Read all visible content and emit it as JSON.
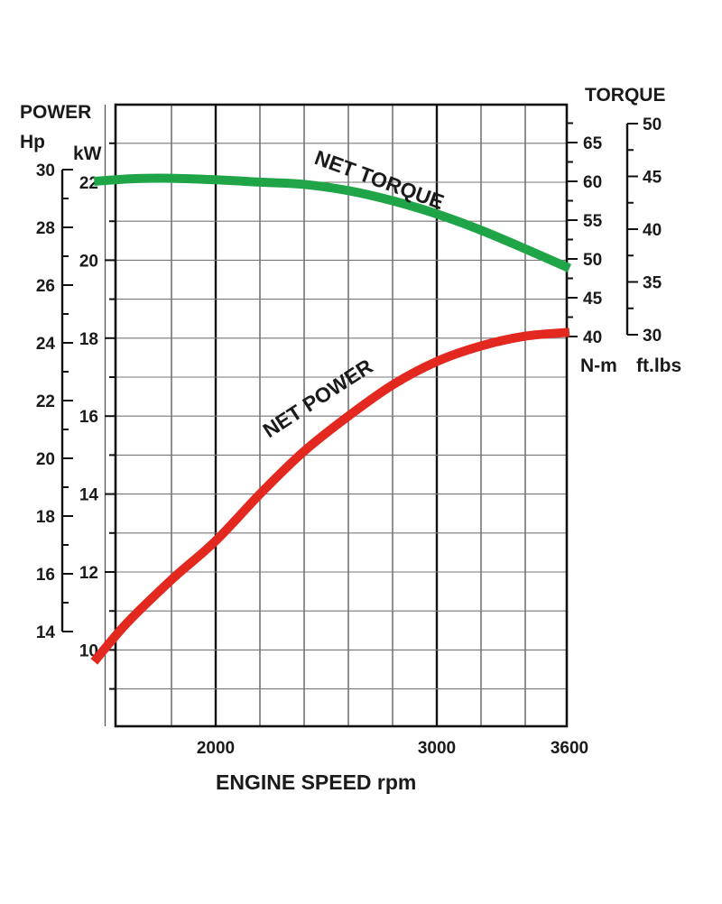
{
  "chart_data": {
    "type": "line",
    "xlabel": "ENGINE SPEED rpm",
    "x_ticks": [
      2000,
      3000,
      3600
    ],
    "x_range": [
      1450,
      3600
    ],
    "left_title": "POWER",
    "hp_unit": "Hp",
    "kw_unit": "kW",
    "hp_ticks": [
      14,
      16,
      18,
      20,
      22,
      24,
      26,
      28,
      30
    ],
    "kw_ticks": [
      10,
      12,
      14,
      16,
      18,
      20,
      22
    ],
    "kw_range": [
      8,
      24
    ],
    "right_title": "TORQUE",
    "nm_unit": "N-m",
    "ftlb_unit": "ft.lbs",
    "nm_ticks": [
      40,
      45,
      50,
      55,
      60,
      65
    ],
    "ftlb_ticks": [
      30,
      35,
      40,
      45,
      50
    ],
    "grid": true,
    "series": [
      {
        "name": "NET TORQUE",
        "unit": "N-m",
        "color": "#1fa548",
        "x": [
          1450,
          1600,
          1700,
          1800,
          2000,
          2200,
          2400,
          2600,
          2800,
          3000,
          3200,
          3400,
          3600
        ],
        "y": [
          60.0,
          60.3,
          60.4,
          60.4,
          60.2,
          59.9,
          59.6,
          58.8,
          57.5,
          55.8,
          53.7,
          51.3,
          48.8
        ]
      },
      {
        "name": "NET POWER",
        "unit": "kW",
        "color": "#e3281f",
        "x": [
          1450,
          1600,
          1800,
          2000,
          2200,
          2400,
          2600,
          2800,
          3000,
          3200,
          3400,
          3600
        ],
        "y": [
          9.7,
          10.7,
          11.8,
          12.8,
          14.0,
          15.1,
          16.0,
          16.8,
          17.4,
          17.8,
          18.05,
          18.15
        ]
      }
    ]
  }
}
